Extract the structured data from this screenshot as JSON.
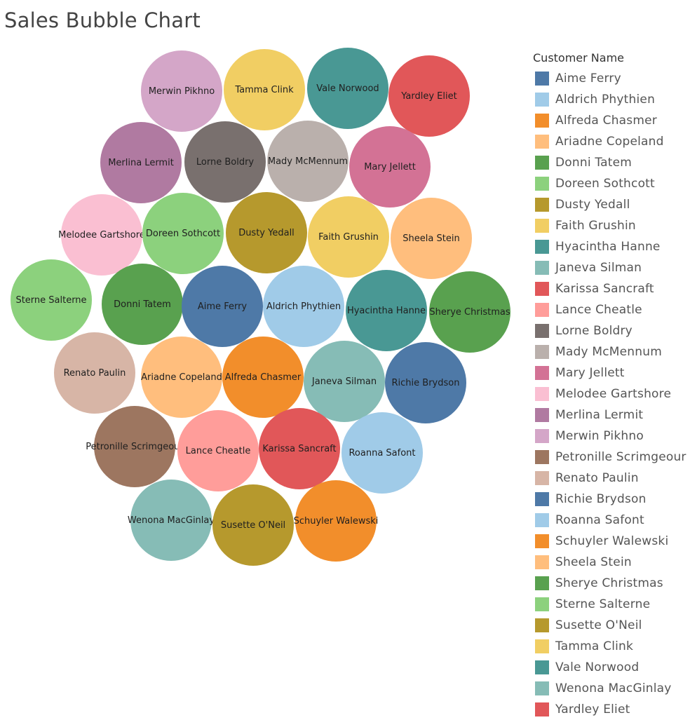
{
  "chart_data": {
    "type": "bubble",
    "title": "Sales Bubble Chart",
    "legend_title": "Customer Name",
    "legend_position": "right",
    "bubbles": [
      {
        "name": "Merwin Pikhno",
        "color": "#D4A6C8"
      },
      {
        "name": "Tamma Clink",
        "color": "#F1CE63"
      },
      {
        "name": "Vale Norwood",
        "color": "#499894"
      },
      {
        "name": "Yardley Eliet",
        "color": "#E15759"
      },
      {
        "name": "Merlina Lermit",
        "color": "#B07AA1"
      },
      {
        "name": "Lorne Boldry",
        "color": "#79706E"
      },
      {
        "name": "Mady McMennum",
        "color": "#BAB0AC"
      },
      {
        "name": "Mary Jellett",
        "color": "#D37295"
      },
      {
        "name": "Melodee Gartshore",
        "color": "#FABFD2"
      },
      {
        "name": "Doreen Sothcott",
        "color": "#8CD17D"
      },
      {
        "name": "Dusty Yedall",
        "color": "#B6992D"
      },
      {
        "name": "Faith Grushin",
        "color": "#F1CE63"
      },
      {
        "name": "Sheela Stein",
        "color": "#FFBE7D"
      },
      {
        "name": "Sterne Salterne",
        "color": "#8CD17D"
      },
      {
        "name": "Donni Tatem",
        "color": "#59A14F"
      },
      {
        "name": "Aime Ferry",
        "color": "#4E79A7"
      },
      {
        "name": "Aldrich Phythien",
        "color": "#A0CBE8"
      },
      {
        "name": "Hyacintha Hanne",
        "color": "#499894"
      },
      {
        "name": "Sherye Christmas",
        "color": "#59A14F"
      },
      {
        "name": "Renato Paulin",
        "color": "#D7B5A6"
      },
      {
        "name": "Ariadne Copeland",
        "color": "#FFBE7D"
      },
      {
        "name": "Alfreda Chasmer",
        "color": "#F28E2B"
      },
      {
        "name": "Janeva Silman",
        "color": "#86BCB6"
      },
      {
        "name": "Richie Brydson",
        "color": "#4E79A7"
      },
      {
        "name": "Petronille Scrimgeour",
        "color": "#9D7660"
      },
      {
        "name": "Lance Cheatle",
        "color": "#FF9D9A"
      },
      {
        "name": "Karissa Sancraft",
        "color": "#E15759"
      },
      {
        "name": "Roanna Safont",
        "color": "#A0CBE8"
      },
      {
        "name": "Wenona MacGinlay",
        "color": "#86BCB6"
      },
      {
        "name": "Susette O'Neil",
        "color": "#B6992D"
      },
      {
        "name": "Schuyler Walewski",
        "color": "#F28E2B"
      }
    ],
    "legend": [
      {
        "name": "Aime Ferry",
        "color": "#4E79A7"
      },
      {
        "name": "Aldrich Phythien",
        "color": "#A0CBE8"
      },
      {
        "name": "Alfreda Chasmer",
        "color": "#F28E2B"
      },
      {
        "name": "Ariadne Copeland",
        "color": "#FFBE7D"
      },
      {
        "name": "Donni Tatem",
        "color": "#59A14F"
      },
      {
        "name": "Doreen Sothcott",
        "color": "#8CD17D"
      },
      {
        "name": "Dusty Yedall",
        "color": "#B6992D"
      },
      {
        "name": "Faith Grushin",
        "color": "#F1CE63"
      },
      {
        "name": "Hyacintha Hanne",
        "color": "#499894"
      },
      {
        "name": "Janeva Silman",
        "color": "#86BCB6"
      },
      {
        "name": "Karissa Sancraft",
        "color": "#E15759"
      },
      {
        "name": "Lance Cheatle",
        "color": "#FF9D9A"
      },
      {
        "name": "Lorne Boldry",
        "color": "#79706E"
      },
      {
        "name": "Mady McMennum",
        "color": "#BAB0AC"
      },
      {
        "name": "Mary Jellett",
        "color": "#D37295"
      },
      {
        "name": "Melodee Gartshore",
        "color": "#FABFD2"
      },
      {
        "name": "Merlina Lermit",
        "color": "#B07AA1"
      },
      {
        "name": "Merwin Pikhno",
        "color": "#D4A6C8"
      },
      {
        "name": "Petronille Scrimgeour",
        "color": "#9D7660"
      },
      {
        "name": "Renato Paulin",
        "color": "#D7B5A6"
      },
      {
        "name": "Richie Brydson",
        "color": "#4E79A7"
      },
      {
        "name": "Roanna Safont",
        "color": "#A0CBE8"
      },
      {
        "name": "Schuyler Walewski",
        "color": "#F28E2B"
      },
      {
        "name": "Sheela Stein",
        "color": "#FFBE7D"
      },
      {
        "name": "Sherye Christmas",
        "color": "#59A14F"
      },
      {
        "name": "Sterne Salterne",
        "color": "#8CD17D"
      },
      {
        "name": "Susette O'Neil",
        "color": "#B6992D"
      },
      {
        "name": "Tamma Clink",
        "color": "#F1CE63"
      },
      {
        "name": "Vale Norwood",
        "color": "#499894"
      },
      {
        "name": "Wenona MacGinlay",
        "color": "#86BCB6"
      },
      {
        "name": "Yardley Eliet",
        "color": "#E15759"
      }
    ]
  }
}
